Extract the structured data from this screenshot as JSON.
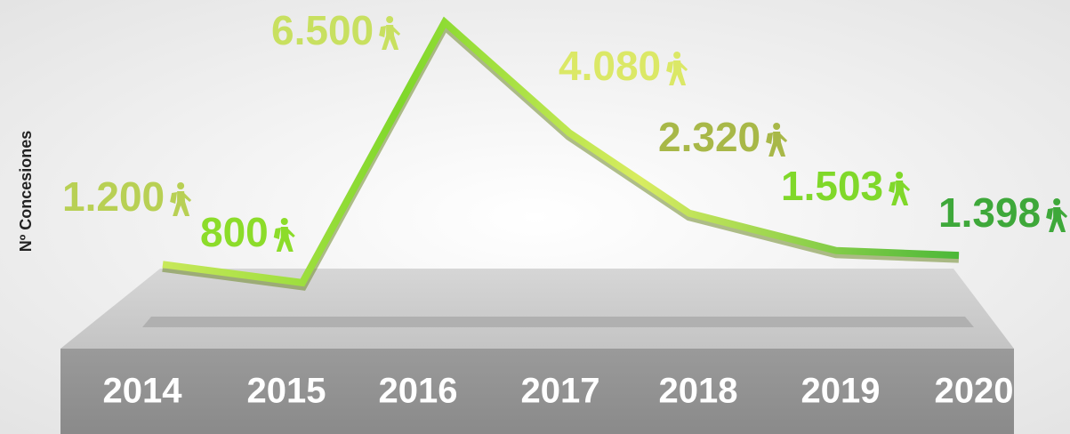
{
  "chart_data": {
    "type": "line",
    "ylabel": "Nº Concesiones",
    "categories": [
      "2014",
      "2015",
      "2016",
      "2017",
      "2018",
      "2019",
      "2020"
    ],
    "series": [
      {
        "color": "#9bdc2c",
        "values": [
          1200,
          800,
          6500,
          4080,
          2320,
          1503,
          1398
        ],
        "value_labels": [
          "1.200",
          "800",
          "6.500",
          "4.080",
          "2.320",
          "1.503",
          "1.398"
        ]
      }
    ]
  }
}
